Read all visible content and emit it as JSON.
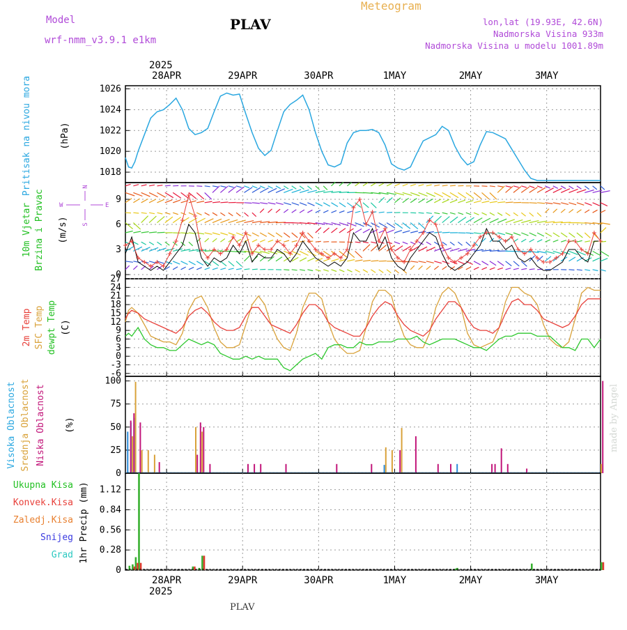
{
  "header": {
    "model_label": "Model",
    "model_value": "wrf-nmm_v3.9.1 e1km",
    "station": "PLAV",
    "title": "Meteogram",
    "lonlat": "lon,lat (19.93E, 42.6N)",
    "elevation": "Nadmorska Visina 933m",
    "model_elevation": "Nadmorska Visina u modelu 1001.89m"
  },
  "footer": {
    "station": "PLAV",
    "credit": "made by Angel"
  },
  "dates": {
    "year": "2025",
    "labels": [
      "28APR",
      "29APR",
      "30APR",
      "1MAY",
      "2MAY",
      "3MAY"
    ]
  },
  "colors": {
    "pressure": "#2aa7e0",
    "temp2m": "#e8403a",
    "sfc": "#d9a23a",
    "dewpt": "#2ec82e",
    "high": "#2a8ad8",
    "mid": "#d9a23a",
    "low": "#c2167a",
    "rain": "#38b030",
    "conv": "#e03a30",
    "frozen": "#e88030",
    "snow": "#3a3ae0",
    "grad": "#2ac8c0",
    "wind_obs": "#000000",
    "wind_gust": "#e8403a"
  },
  "panels": {
    "pressure": {
      "label": "Pritisak na nivou mora",
      "unit": "(hPa)"
    },
    "wind": {
      "label1": "10m Vjetar",
      "label2": "Brzina i Pravac",
      "unit": "(m/s)",
      "compass": [
        "N",
        "W",
        "E",
        "S"
      ]
    },
    "temp": {
      "label1": "2m Temp",
      "label2": "SFC Temp",
      "label3": "dewpt Temp",
      "unit": "(C)"
    },
    "cloud": {
      "label1": "Visoka Oblacnost",
      "label2": "Srednja Oblacnost",
      "label3": "Niska Oblacnost",
      "unit": "(%)"
    },
    "precip": {
      "axis_label": "1hr Precip (mm)",
      "legend": [
        "Ukupna Kisa",
        "Konvek.Kisa",
        "Zaledj.Kisa",
        "Snijeg",
        "Grad"
      ]
    }
  },
  "chart_data": [
    {
      "type": "line",
      "title": "Pritisak na nivou mora",
      "ylabel": "(hPa)",
      "ylim": [
        1017,
        1026.3
      ],
      "yticks": [
        1018,
        1020,
        1022,
        1024,
        1026
      ],
      "x": [
        0,
        1,
        2,
        3,
        4,
        6,
        8,
        10,
        12,
        14,
        16,
        18,
        20,
        22,
        24,
        26,
        28,
        30,
        32,
        34,
        36,
        38,
        40,
        42,
        44,
        46,
        48,
        50,
        52,
        54,
        56,
        58,
        60,
        62,
        64,
        66,
        68,
        70,
        72,
        74,
        76,
        78,
        80,
        82,
        84,
        86,
        88,
        90,
        92,
        94,
        96,
        98,
        100,
        102,
        104,
        106,
        108,
        110,
        112,
        114,
        116,
        118,
        120,
        122,
        124,
        126,
        128,
        130,
        132,
        134,
        136,
        138,
        140,
        142,
        144,
        146,
        148,
        150
      ],
      "series": [
        {
          "values": [
            1019.4,
            1018.5,
            1018.4,
            1019.0,
            1020.0,
            1021.6,
            1023.2,
            1023.8,
            1024.0,
            1024.5,
            1025.1,
            1024.0,
            1022.2,
            1021.6,
            1021.8,
            1022.2,
            1023.8,
            1025.3,
            1025.6,
            1025.4,
            1025.5,
            1023.6,
            1021.8,
            1020.3,
            1019.6,
            1020.1,
            1022.0,
            1023.8,
            1024.5,
            1024.9,
            1025.4,
            1024.0,
            1021.8,
            1020.0,
            1018.7,
            1018.5,
            1018.8,
            1020.8,
            1021.8,
            1022.0,
            1022.0,
            1022.1,
            1021.8,
            1020.6,
            1018.8,
            1018.4,
            1018.2,
            1018.5,
            1019.8,
            1021.0,
            1021.3,
            1021.6,
            1022.4,
            1022.0,
            1020.5,
            1019.4,
            1018.7,
            1019.0,
            1020.6,
            1021.9,
            1021.8,
            1021.5,
            1021.2,
            1020.2,
            1019.2,
            1018.2,
            1017.4,
            1017.2,
            1017.2,
            1017.2,
            1017.2,
            1017.2,
            1017.2,
            1017.2,
            1017.2,
            1017.2,
            1017.2,
            1017.2
          ]
        }
      ]
    },
    {
      "type": "line",
      "title": "10m Vjetar Brzina i Pravac",
      "ylabel": "(m/s)",
      "ylim": [
        -0.5,
        11
      ],
      "yticks": [
        0,
        3,
        6,
        9
      ],
      "x": [
        0,
        2,
        4,
        6,
        8,
        10,
        12,
        14,
        16,
        18,
        20,
        22,
        24,
        26,
        28,
        30,
        32,
        34,
        36,
        38,
        40,
        42,
        44,
        46,
        48,
        50,
        52,
        54,
        56,
        58,
        60,
        62,
        64,
        66,
        68,
        70,
        72,
        74,
        76,
        78,
        80,
        82,
        84,
        86,
        88,
        90,
        92,
        94,
        96,
        98,
        100,
        102,
        104,
        106,
        108,
        110,
        112,
        114,
        116,
        118,
        120,
        122,
        124,
        126,
        128,
        130,
        132,
        134,
        136,
        138,
        140,
        142,
        144,
        146,
        148,
        150
      ],
      "series": [
        {
          "values": [
            2.5,
            4.5,
            1.5,
            1.0,
            0.5,
            1.0,
            0.5,
            1.5,
            2.5,
            3.5,
            6.0,
            5.0,
            2.0,
            1.0,
            2.0,
            1.5,
            2.0,
            3.5,
            2.5,
            4.0,
            1.5,
            2.5,
            2.0,
            2.0,
            3.0,
            2.5,
            1.5,
            2.5,
            4.0,
            3.0,
            2.0,
            1.5,
            1.0,
            1.5,
            1.0,
            2.0,
            5.0,
            4.0,
            4.0,
            5.5,
            3.0,
            4.5,
            2.0,
            1.0,
            0.5,
            2.0,
            3.0,
            4.0,
            5.0,
            4.5,
            2.5,
            1.0,
            0.5,
            1.0,
            1.5,
            2.5,
            3.5,
            5.5,
            4.0,
            4.0,
            3.0,
            3.5,
            2.0,
            1.5,
            2.0,
            1.0,
            0.5,
            0.5,
            1.0,
            1.5,
            3.0,
            3.0,
            2.0,
            1.5,
            4.0,
            4.0
          ]
        },
        {
          "values": [
            3.5,
            4.0,
            2.0,
            1.5,
            1.0,
            1.5,
            1.0,
            2.5,
            4.0,
            6.5,
            9.5,
            7.0,
            3.0,
            2.0,
            3.0,
            2.5,
            3.0,
            4.5,
            3.5,
            5.0,
            2.5,
            3.5,
            3.0,
            3.0,
            4.0,
            3.5,
            2.5,
            3.5,
            5.0,
            4.0,
            3.0,
            2.5,
            2.0,
            2.5,
            2.0,
            3.0,
            8.0,
            9.0,
            6.0,
            7.5,
            4.0,
            5.5,
            3.0,
            2.0,
            1.5,
            3.0,
            4.0,
            5.0,
            6.5,
            6.0,
            3.5,
            2.0,
            1.5,
            2.0,
            2.5,
            3.5,
            4.5,
            5.0,
            5.0,
            4.5,
            4.0,
            4.5,
            3.0,
            2.5,
            3.0,
            2.0,
            1.5,
            1.5,
            2.0,
            2.5,
            4.0,
            4.0,
            3.0,
            2.5,
            5.0,
            4.0
          ]
        }
      ]
    },
    {
      "type": "line",
      "title": "2m Temp / SFC Temp / dewpt Temp",
      "ylabel": "(C)",
      "ylim": [
        -7,
        27
      ],
      "yticks": [
        -6,
        -3,
        0,
        3,
        6,
        9,
        12,
        15,
        18,
        21,
        24,
        27
      ],
      "x": [
        0,
        1,
        2,
        4,
        6,
        8,
        10,
        12,
        14,
        16,
        18,
        20,
        22,
        24,
        26,
        28,
        30,
        32,
        34,
        36,
        38,
        40,
        42,
        44,
        46,
        48,
        50,
        52,
        54,
        56,
        58,
        60,
        62,
        64,
        66,
        68,
        70,
        72,
        74,
        76,
        78,
        80,
        82,
        84,
        86,
        88,
        90,
        92,
        94,
        96,
        98,
        100,
        102,
        104,
        106,
        108,
        110,
        112,
        114,
        116,
        118,
        120,
        122,
        124,
        126,
        128,
        130,
        132,
        134,
        136,
        138,
        140,
        142,
        144,
        146,
        148,
        150
      ],
      "series": [
        {
          "values": [
            13,
            15,
            16,
            15,
            13,
            12,
            11,
            10,
            9,
            8,
            10,
            14,
            16,
            17,
            15,
            12,
            10,
            9,
            9,
            10,
            14,
            17,
            17,
            14,
            11,
            10,
            9,
            8,
            11,
            15,
            18,
            18,
            16,
            12,
            10,
            9,
            8,
            7,
            7,
            10,
            14,
            17,
            19,
            18,
            14,
            11,
            9,
            8,
            7,
            9,
            13,
            16,
            19,
            19,
            17,
            13,
            10,
            9,
            9,
            8,
            10,
            15,
            19,
            20,
            18,
            18,
            16,
            13,
            12,
            11,
            10,
            11,
            14,
            18,
            20,
            20,
            20
          ]
        },
        {
          "values": [
            12,
            16,
            17,
            15,
            11,
            7,
            6,
            5,
            5,
            4,
            8,
            16,
            20,
            21,
            17,
            10,
            5,
            3,
            3,
            4,
            11,
            18,
            21,
            18,
            11,
            6,
            3,
            2,
            8,
            17,
            22,
            22,
            20,
            12,
            6,
            3,
            1,
            1,
            2,
            10,
            19,
            23,
            23,
            21,
            13,
            7,
            4,
            3,
            3,
            8,
            17,
            22,
            24,
            22,
            17,
            8,
            4,
            3,
            4,
            5,
            10,
            19,
            24,
            24,
            22,
            21,
            18,
            11,
            6,
            4,
            3,
            5,
            13,
            22,
            24,
            23,
            23
          ]
        },
        {
          "values": [
            7,
            8,
            7,
            10,
            6,
            4,
            3,
            3,
            2,
            2,
            4,
            6,
            5,
            4,
            5,
            4,
            1,
            0,
            -1,
            -1,
            0,
            -1,
            0,
            -1,
            -1,
            -1,
            -4,
            -5,
            -3,
            -1,
            0,
            1,
            -1,
            3,
            4,
            4,
            3,
            3,
            5,
            4,
            4,
            5,
            5,
            5,
            6,
            6,
            6,
            7,
            5,
            4,
            5,
            6,
            6,
            6,
            5,
            4,
            3,
            3,
            2,
            4,
            6,
            7,
            7,
            8,
            8,
            8,
            7,
            7,
            7,
            5,
            3,
            3,
            2,
            6,
            6,
            3,
            6
          ]
        }
      ]
    },
    {
      "type": "bar",
      "title": "Visoka / Srednja / Niska Oblacnost",
      "ylabel": "(%)",
      "ylim": [
        0,
        105
      ],
      "yticks": [
        0,
        25,
        50,
        75,
        100
      ],
      "series": [
        {
          "x": [
            1,
            2,
            3,
            82,
            105
          ],
          "values": [
            45,
            55,
            60,
            9,
            10
          ]
        },
        {
          "x": [
            2,
            3,
            5,
            7,
            9,
            22,
            24,
            82,
            84,
            87,
            150
          ],
          "values": [
            40,
            99,
            25,
            25,
            20,
            50,
            45,
            28,
            25,
            49,
            10
          ]
        },
        {
          "x": [
            1,
            2,
            4,
            10,
            22,
            23,
            24,
            26,
            38,
            40,
            42,
            50,
            66,
            77,
            86,
            91,
            98,
            102,
            115,
            116,
            118,
            120,
            126,
            150
          ],
          "values": [
            57,
            65,
            55,
            12,
            20,
            55,
            50,
            10,
            10,
            10,
            10,
            10,
            10,
            10,
            25,
            40,
            10,
            10,
            10,
            10,
            27,
            10,
            5,
            100
          ]
        }
      ]
    },
    {
      "type": "bar",
      "title": "1hr Precip (mm)",
      "ylabel": "1hr Precip (mm)",
      "ylim": [
        0,
        1.35
      ],
      "yticks": [
        0,
        0.28,
        0.56,
        0.84,
        1.12
      ],
      "series": [
        {
          "name": "Ukupna Kisa",
          "x": [
            1,
            2,
            3,
            4,
            21,
            23,
            24,
            104,
            104.5,
            128,
            150
          ],
          "values": [
            0.06,
            0.08,
            0.18,
            1.35,
            0.05,
            0.03,
            0.2,
            0.02,
            0.03,
            0.09,
            0.11
          ]
        },
        {
          "name": "Konvek.Kisa",
          "x": [
            2,
            3,
            4,
            21,
            24,
            150
          ],
          "values": [
            0.05,
            0.1,
            0.1,
            0.05,
            0.2,
            0.11
          ]
        }
      ]
    }
  ]
}
